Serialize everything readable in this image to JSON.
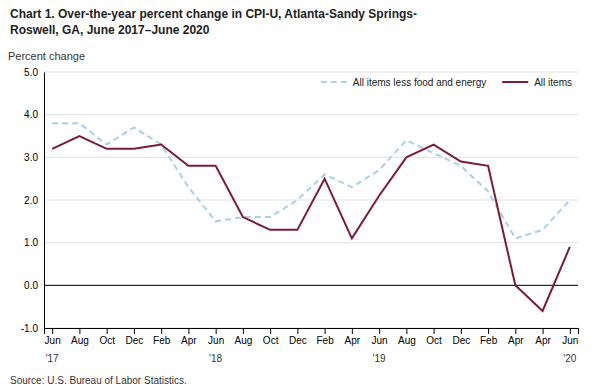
{
  "chart_data": {
    "type": "line",
    "title": "Chart 1. Over-the-year percent change in CPI-U, Atlanta-Sandy Springs-\nRoswell, GA, June 2017–June 2020",
    "y_label": "Percent change",
    "source": "Source: U.S. Bureau of Labor Statistics.",
    "categories": [
      "Jun",
      "Aug",
      "Oct",
      "Dec",
      "Feb",
      "Apr",
      "Jun",
      "Aug",
      "Oct",
      "Dec",
      "Feb",
      "Apr",
      "Jun",
      "Aug",
      "Oct",
      "Dec",
      "Feb",
      "Apr",
      "Apr",
      "Jun"
    ],
    "annotations": [
      {
        "x": 0,
        "text": "'17"
      },
      {
        "x": 6,
        "text": "'18"
      },
      {
        "x": 12,
        "text": "'19"
      },
      {
        "x": 19,
        "text": "'20"
      }
    ],
    "series": [
      {
        "name": "All items less food and energy",
        "color": "#a8d0e8",
        "line_style": "dashed",
        "values": [
          3.8,
          3.8,
          3.3,
          3.7,
          3.3,
          2.3,
          1.5,
          1.6,
          1.6,
          2.0,
          2.6,
          2.3,
          2.7,
          3.4,
          3.1,
          2.8,
          2.2,
          1.1,
          1.3,
          2.0
        ]
      },
      {
        "name": "All items",
        "color": "#7b1b3b",
        "line_style": "solid",
        "values": [
          3.2,
          3.5,
          3.2,
          3.2,
          3.3,
          2.8,
          2.8,
          1.6,
          1.3,
          1.3,
          2.5,
          1.1,
          2.1,
          3.0,
          3.3,
          2.9,
          2.8,
          0.0,
          -0.6,
          0.9
        ]
      }
    ],
    "ylim": [
      -1.0,
      5.0
    ],
    "yticks": [
      {
        "value": -1.0,
        "label": "-1.0"
      },
      {
        "value": 0.0,
        "label": "0.0"
      },
      {
        "value": 1.0,
        "label": "1.0"
      },
      {
        "value": 2.0,
        "label": "2.0"
      },
      {
        "value": 3.0,
        "label": "3.0"
      },
      {
        "value": 4.0,
        "label": "4.0"
      },
      {
        "value": 5.0,
        "label": "5.0"
      }
    ],
    "grid": true,
    "legend": "top-right"
  }
}
